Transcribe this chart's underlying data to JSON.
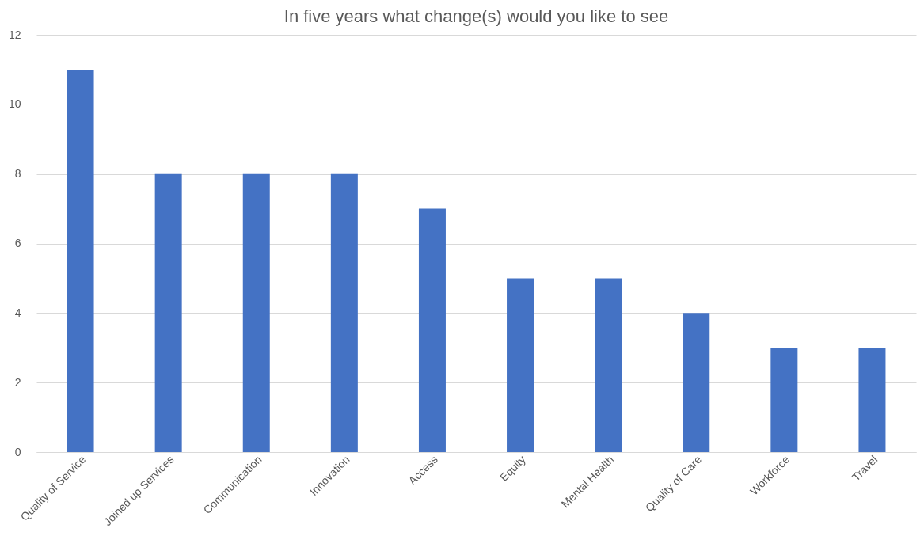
{
  "chart_data": {
    "type": "bar",
    "title": "In five years what change(s) would you like to see",
    "categories": [
      "Quality of Service",
      "Joined up Services",
      "Communication",
      "Innovation",
      "Access",
      "Equity",
      "Mental Health",
      "Quality of Care",
      "Workforce",
      "Travel"
    ],
    "values": [
      11,
      8,
      8,
      8,
      7,
      5,
      5,
      4,
      3,
      3
    ],
    "color": "#4472c4",
    "ylim": [
      0,
      12
    ],
    "yticks": [
      0,
      2,
      4,
      6,
      8,
      10,
      12
    ],
    "grid": "y"
  }
}
